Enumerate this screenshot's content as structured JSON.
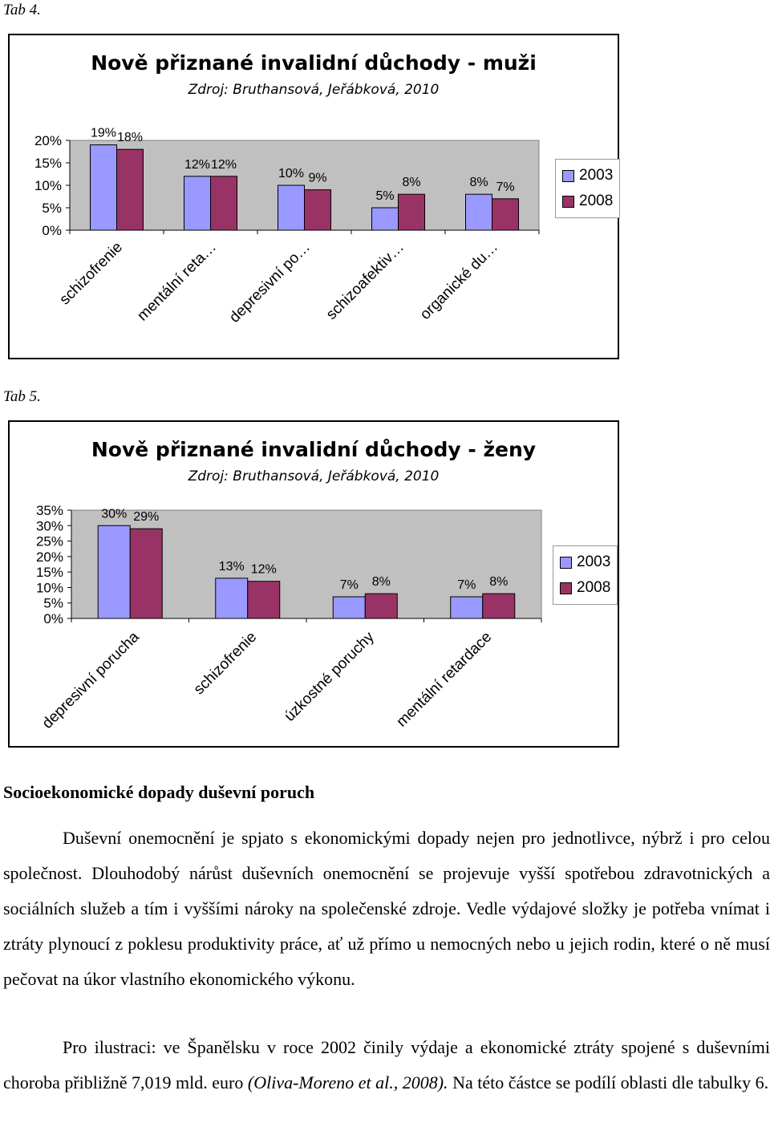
{
  "captions": {
    "tab4": "Tab 4.",
    "tab5": "Tab 5."
  },
  "chart_data": [
    {
      "type": "bar",
      "title": "Nově přiznané invalidní důchody - muži",
      "subtitle": "Zdroj: Bruthansová, Jeřábková, 2010",
      "categories": [
        "schizofrenie",
        "mentální reta…",
        "depresivní po…",
        "schizoafektiv…",
        "organické du…"
      ],
      "series": [
        {
          "name": "2003",
          "values": [
            19,
            12,
            10,
            5,
            8
          ],
          "labels": [
            "19%",
            "12%",
            "10%",
            "5%",
            "8%"
          ],
          "color": "#9999FF"
        },
        {
          "name": "2008",
          "values": [
            18,
            12,
            9,
            8,
            7
          ],
          "labels": [
            "18%",
            "12%",
            "9%",
            "8%",
            "7%"
          ],
          "color": "#993366"
        }
      ],
      "yticks": [
        "0%",
        "5%",
        "10%",
        "15%",
        "20%"
      ],
      "ylim": [
        0,
        20
      ],
      "legend": [
        "2003",
        "2008"
      ],
      "legend_position": "right",
      "plot_background": "#C0C0C0",
      "grid": false
    },
    {
      "type": "bar",
      "title": "Nově přiznané invalidní důchody - ženy",
      "subtitle": "Zdroj: Bruthansová, Jeřábková, 2010",
      "categories": [
        "depresivní porucha",
        "schizofrenie",
        "úzkostné poruchy",
        "mentální retardace"
      ],
      "series": [
        {
          "name": "2003",
          "values": [
            30,
            13,
            7,
            7
          ],
          "labels": [
            "30%",
            "13%",
            "7%",
            "7%"
          ],
          "color": "#9999FF"
        },
        {
          "name": "2008",
          "values": [
            29,
            12,
            8,
            8
          ],
          "labels": [
            "29%",
            "12%",
            "8%",
            "8%"
          ],
          "color": "#993366"
        }
      ],
      "yticks": [
        "0%",
        "5%",
        "10%",
        "15%",
        "20%",
        "25%",
        "30%",
        "35%"
      ],
      "ylim": [
        0,
        35
      ],
      "legend": [
        "2003",
        "2008"
      ],
      "legend_position": "right",
      "plot_background": "#C0C0C0",
      "grid": false
    }
  ],
  "text": {
    "heading": "Socioekonomické dopady duševní poruch",
    "p1": "Duševní onemocnění je spjato s ekonomickými dopady nejen pro jednotlivce, nýbrž i pro celou společnost. Dlouhodobý nárůst duševních onemocnění se projevuje vyšší spotřebou zdravotnických a sociálních služeb a tím i vyššími nároky na společenské zdroje. Vedle výdajové složky je potřeba vnímat i ztráty plynoucí z poklesu produktivity práce, ať už přímo u nemocných nebo u jejich rodin, které o ně musí pečovat na úkor vlastního ekonomického výkonu.",
    "p2_before": "Pro ilustraci: ve Španělsku v roce 2002 činily výdaje a ekonomické ztráty spojené s duševními choroba přibližně 7,019 mld. euro ",
    "p2_citation": "(Oliva-Moreno et al., 2008).",
    "p2_after": " Na této částce se podílí oblasti dle tabulky 6."
  }
}
